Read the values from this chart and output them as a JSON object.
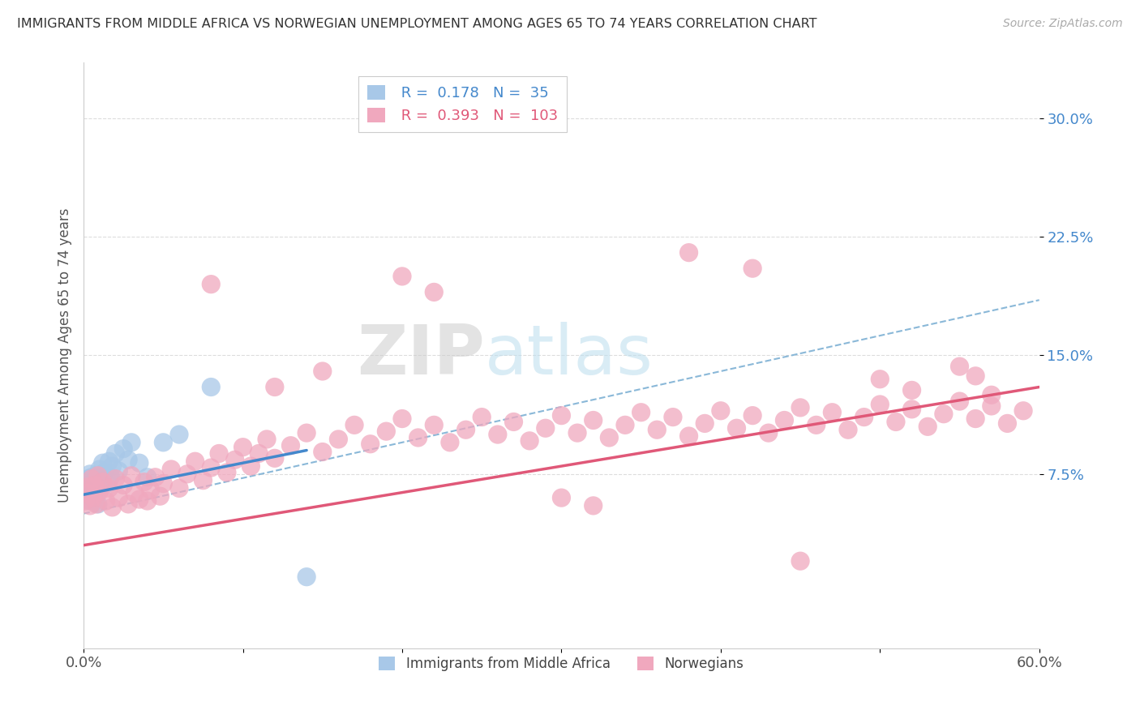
{
  "title": "IMMIGRANTS FROM MIDDLE AFRICA VS NORWEGIAN UNEMPLOYMENT AMONG AGES 65 TO 74 YEARS CORRELATION CHART",
  "source": "Source: ZipAtlas.com",
  "ylabel": "Unemployment Among Ages 65 to 74 years",
  "xlim": [
    0.0,
    0.6
  ],
  "ylim": [
    -0.035,
    0.335
  ],
  "blue_R": 0.178,
  "blue_N": 35,
  "pink_R": 0.393,
  "pink_N": 103,
  "blue_color": "#a8c8e8",
  "pink_color": "#f0a8be",
  "blue_line_color": "#4488cc",
  "pink_line_color": "#e05878",
  "dashed_line_color": "#8ab8d8",
  "watermark_zip": "ZIP",
  "watermark_atlas": "atlas",
  "legend_label_blue": "Immigrants from Middle Africa",
  "legend_label_pink": "Norwegians",
  "blue_scatter_x": [
    0.001,
    0.002,
    0.003,
    0.003,
    0.004,
    0.004,
    0.005,
    0.005,
    0.006,
    0.006,
    0.007,
    0.007,
    0.008,
    0.008,
    0.009,
    0.009,
    0.01,
    0.01,
    0.012,
    0.013,
    0.015,
    0.016,
    0.017,
    0.018,
    0.02,
    0.022,
    0.025,
    0.028,
    0.03,
    0.035,
    0.04,
    0.05,
    0.06,
    0.08,
    0.14
  ],
  "blue_scatter_y": [
    0.062,
    0.068,
    0.072,
    0.065,
    0.058,
    0.075,
    0.067,
    0.073,
    0.06,
    0.064,
    0.069,
    0.058,
    0.074,
    0.063,
    0.056,
    0.071,
    0.078,
    0.065,
    0.082,
    0.076,
    0.069,
    0.083,
    0.073,
    0.08,
    0.088,
    0.077,
    0.091,
    0.084,
    0.095,
    0.082,
    0.073,
    0.095,
    0.1,
    0.13,
    0.01
  ],
  "pink_scatter_x": [
    0.001,
    0.002,
    0.003,
    0.004,
    0.005,
    0.006,
    0.007,
    0.008,
    0.009,
    0.01,
    0.012,
    0.014,
    0.016,
    0.018,
    0.02,
    0.022,
    0.025,
    0.028,
    0.03,
    0.032,
    0.035,
    0.038,
    0.04,
    0.042,
    0.045,
    0.048,
    0.05,
    0.055,
    0.06,
    0.065,
    0.07,
    0.075,
    0.08,
    0.085,
    0.09,
    0.095,
    0.1,
    0.105,
    0.11,
    0.115,
    0.12,
    0.13,
    0.14,
    0.15,
    0.16,
    0.17,
    0.18,
    0.19,
    0.2,
    0.21,
    0.22,
    0.23,
    0.24,
    0.25,
    0.26,
    0.27,
    0.28,
    0.29,
    0.3,
    0.31,
    0.32,
    0.33,
    0.34,
    0.35,
    0.36,
    0.37,
    0.38,
    0.39,
    0.4,
    0.41,
    0.42,
    0.43,
    0.44,
    0.45,
    0.46,
    0.47,
    0.48,
    0.49,
    0.5,
    0.51,
    0.52,
    0.53,
    0.54,
    0.55,
    0.56,
    0.57,
    0.58,
    0.59,
    0.2,
    0.22,
    0.38,
    0.42,
    0.15,
    0.12,
    0.08,
    0.55,
    0.56,
    0.57,
    0.5,
    0.52,
    0.3,
    0.32,
    0.45
  ],
  "pink_scatter_y": [
    0.058,
    0.063,
    0.067,
    0.055,
    0.072,
    0.06,
    0.068,
    0.056,
    0.074,
    0.064,
    0.07,
    0.058,
    0.066,
    0.054,
    0.072,
    0.06,
    0.068,
    0.056,
    0.074,
    0.063,
    0.059,
    0.07,
    0.058,
    0.065,
    0.073,
    0.061,
    0.069,
    0.078,
    0.066,
    0.075,
    0.083,
    0.071,
    0.079,
    0.088,
    0.076,
    0.084,
    0.092,
    0.08,
    0.088,
    0.097,
    0.085,
    0.093,
    0.101,
    0.089,
    0.097,
    0.106,
    0.094,
    0.102,
    0.11,
    0.098,
    0.106,
    0.095,
    0.103,
    0.111,
    0.1,
    0.108,
    0.096,
    0.104,
    0.112,
    0.101,
    0.109,
    0.098,
    0.106,
    0.114,
    0.103,
    0.111,
    0.099,
    0.107,
    0.115,
    0.104,
    0.112,
    0.101,
    0.109,
    0.117,
    0.106,
    0.114,
    0.103,
    0.111,
    0.119,
    0.108,
    0.116,
    0.105,
    0.113,
    0.121,
    0.11,
    0.118,
    0.107,
    0.115,
    0.2,
    0.19,
    0.215,
    0.205,
    0.14,
    0.13,
    0.195,
    0.143,
    0.137,
    0.125,
    0.135,
    0.128,
    0.06,
    0.055,
    0.02
  ],
  "blue_line_x": [
    0.0,
    0.14
  ],
  "blue_line_y": [
    0.062,
    0.09
  ],
  "pink_line_x": [
    0.0,
    0.6
  ],
  "pink_line_y": [
    0.03,
    0.13
  ],
  "dashed_line_x": [
    0.0,
    0.6
  ],
  "dashed_line_y": [
    0.05,
    0.185
  ]
}
